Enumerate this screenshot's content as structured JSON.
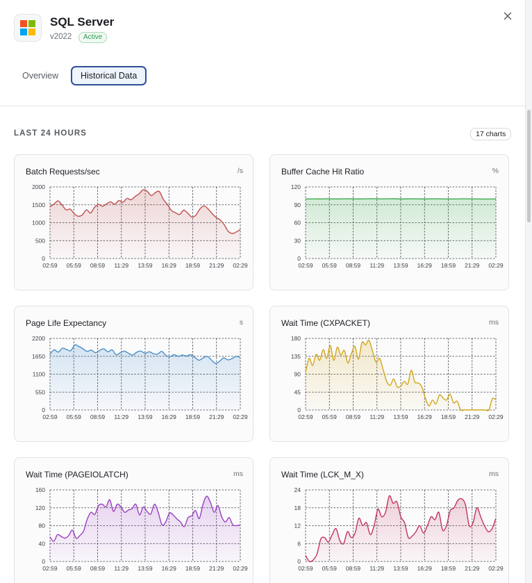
{
  "app": {
    "name": "SQL Server",
    "version": "v2022",
    "status": "Active",
    "logo_colors": [
      "#f25022",
      "#7fba00",
      "#00a4ef",
      "#ffb900"
    ]
  },
  "tabs": [
    {
      "label": "Overview",
      "active": false
    },
    {
      "label": "Historical Data",
      "active": true
    }
  ],
  "section": {
    "title": "LAST 24 HOURS",
    "count_badge": "17 charts"
  },
  "close_icon": "close-icon",
  "chart_data": [
    {
      "type": "area",
      "title": "Batch Requests/sec",
      "unit": "/s",
      "color": "#c0504d",
      "xticks": [
        "02:59",
        "05:59",
        "08:59",
        "11:29",
        "13:59",
        "16:29",
        "18:59",
        "21:29",
        "02:29"
      ],
      "yticks": [
        0,
        500,
        1000,
        1500,
        2000
      ],
      "ylim": [
        0,
        2000
      ],
      "values": [
        1450,
        1520,
        1610,
        1490,
        1360,
        1380,
        1250,
        1180,
        1220,
        1360,
        1270,
        1430,
        1510,
        1460,
        1530,
        1580,
        1520,
        1620,
        1570,
        1680,
        1640,
        1730,
        1810,
        1920,
        1880,
        1760,
        1840,
        1870,
        1650,
        1510,
        1340,
        1280,
        1230,
        1350,
        1270,
        1160,
        1210,
        1380,
        1470,
        1390,
        1260,
        1150,
        1080,
        950,
        760,
        700,
        740,
        810
      ]
    },
    {
      "type": "area",
      "title": "Buffer Cache Hit Ratio",
      "unit": "%",
      "color": "#3eab4a",
      "xticks": [
        "02:59",
        "05:59",
        "08:59",
        "11:29",
        "13:59",
        "16:29",
        "18:59",
        "21:29",
        "02:29"
      ],
      "yticks": [
        0,
        30,
        60,
        90,
        120
      ],
      "ylim": [
        0,
        120
      ],
      "values": [
        99.8,
        99.9,
        100.0,
        99.9,
        100.1,
        100.0,
        99.9,
        100.0,
        100.1,
        100.0,
        99.9,
        100.0,
        100.1,
        100.2,
        100.1,
        100.0,
        100.1,
        100.2,
        100.0,
        99.9,
        100.0,
        100.1,
        100.0,
        99.9,
        100.0,
        100.1,
        100.0,
        99.9,
        99.8,
        99.9,
        100.0,
        100.1,
        100.0,
        99.9,
        99.8,
        99.7,
        99.8,
        99.9
      ]
    },
    {
      "type": "area",
      "title": "Page Life Expectancy",
      "unit": "s",
      "color": "#4a8fc9",
      "xticks": [
        "02:59",
        "05:59",
        "08:59",
        "11:29",
        "13:59",
        "16:29",
        "18:59",
        "21:29",
        "02:29"
      ],
      "yticks": [
        0,
        550,
        1100,
        1650,
        2200
      ],
      "ylim": [
        0,
        2200
      ],
      "values": [
        1720,
        1850,
        1780,
        1900,
        1860,
        1820,
        2000,
        1950,
        1880,
        1800,
        1840,
        1760,
        1830,
        1880,
        1790,
        1850,
        1700,
        1760,
        1810,
        1740,
        1690,
        1780,
        1810,
        1740,
        1790,
        1730,
        1720,
        1800,
        1680,
        1640,
        1700,
        1650,
        1690,
        1660,
        1700,
        1620,
        1530,
        1600,
        1650,
        1540,
        1430,
        1500,
        1600,
        1540,
        1580,
        1650,
        1610
      ]
    },
    {
      "type": "area",
      "title": "Wait Time (CXPACKET)",
      "unit": "ms",
      "color": "#d2a51a",
      "xticks": [
        "02:59",
        "05:59",
        "08:59",
        "11:29",
        "13:59",
        "16:29",
        "18:59",
        "21:29",
        "02:29"
      ],
      "yticks": [
        0,
        45,
        90,
        135,
        180
      ],
      "ylim": [
        0,
        180
      ],
      "values": [
        95,
        130,
        112,
        140,
        125,
        152,
        130,
        162,
        125,
        158,
        138,
        150,
        118,
        142,
        160,
        128,
        170,
        164,
        175,
        148,
        120,
        130,
        102,
        72,
        62,
        78,
        58,
        60,
        72,
        65,
        100,
        70,
        68,
        58,
        30,
        10,
        25,
        15,
        38,
        30,
        25,
        40,
        18,
        22,
        0,
        0,
        0,
        0,
        0,
        0,
        0,
        0,
        0,
        28,
        26
      ]
    },
    {
      "type": "area",
      "title": "Wait Time (PAGEIOLATCH)",
      "unit": "ms",
      "color": "#9b3fc2",
      "xticks": [
        "02:59",
        "05:59",
        "08:59",
        "11:29",
        "13:59",
        "16:29",
        "18:59",
        "21:29",
        "02:29"
      ],
      "yticks": [
        0,
        40,
        80,
        120,
        160
      ],
      "ylim": [
        0,
        160
      ],
      "values": [
        55,
        45,
        60,
        56,
        52,
        58,
        70,
        52,
        58,
        68,
        95,
        110,
        105,
        125,
        128,
        122,
        138,
        112,
        128,
        122,
        110,
        115,
        118,
        128,
        104,
        122,
        112,
        106,
        128,
        110,
        82,
        88,
        108,
        104,
        95,
        88,
        78,
        98,
        102,
        114,
        96,
        128,
        146,
        132,
        110,
        125,
        100,
        88,
        98,
        82,
        80,
        82
      ]
    },
    {
      "type": "area",
      "title": "Wait Time (LCK_M_X)",
      "unit": "ms",
      "color": "#c3345b",
      "xticks": [
        "02:59",
        "05:59",
        "08:59",
        "11:29",
        "13:59",
        "16:29",
        "18:59",
        "21:29",
        "02:29"
      ],
      "yticks": [
        0,
        6,
        12,
        18,
        24
      ],
      "ylim": [
        0,
        24
      ],
      "values": [
        2.0,
        0.0,
        0.5,
        2.5,
        7.5,
        8.0,
        6.5,
        9.0,
        11.0,
        7.0,
        6.0,
        10.0,
        8.0,
        9.5,
        14.5,
        12.0,
        13.0,
        9.0,
        12.0,
        17.5,
        15.0,
        16.5,
        22.0,
        19.5,
        20.0,
        15.0,
        13.0,
        8.0,
        8.5,
        10.0,
        12.0,
        9.5,
        12.0,
        15.0,
        14.0,
        16.5,
        10.5,
        12.0,
        17.0,
        18.0,
        20.5,
        21.0,
        19.0,
        12.0,
        13.0,
        18.0,
        15.0,
        12.0,
        10.0,
        11.0,
        14.5
      ]
    }
  ]
}
